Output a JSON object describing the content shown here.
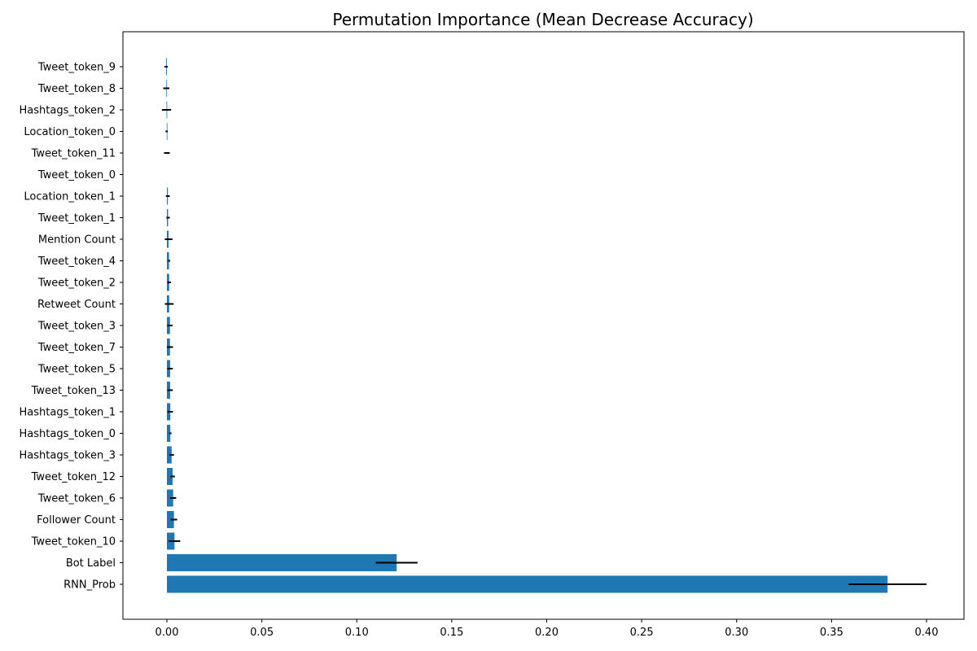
{
  "chart_data": {
    "type": "bar",
    "orientation": "horizontal",
    "title": "Permutation Importance (Mean Decrease Accuracy)",
    "xlabel": "",
    "ylabel": "",
    "xlim": [
      -0.023,
      0.4175
    ],
    "xticks": [
      0.0,
      0.05,
      0.1,
      0.15,
      0.2,
      0.25,
      0.3,
      0.35,
      0.4
    ],
    "xtick_labels": [
      "0.00",
      "0.05",
      "0.10",
      "0.15",
      "0.20",
      "0.25",
      "0.30",
      "0.35",
      "0.40"
    ],
    "grid": false,
    "bar_color": "#1f77b4",
    "error_color": "#000000",
    "categories": [
      "RNN_Prob",
      "Bot Label",
      "Tweet_token_10",
      "Follower Count",
      "Tweet_token_6",
      "Tweet_token_12",
      "Hashtags_token_3",
      "Hashtags_token_0",
      "Hashtags_token_1",
      "Tweet_token_13",
      "Tweet_token_5",
      "Tweet_token_7",
      "Tweet_token_3",
      "Retweet Count",
      "Tweet_token_2",
      "Tweet_token_4",
      "Mention Count",
      "Tweet_token_1",
      "Location_token_1",
      "Tweet_token_0",
      "Tweet_token_11",
      "Location_token_0",
      "Hashtags_token_2",
      "Tweet_token_8",
      "Tweet_token_9"
    ],
    "values": [
      0.3795,
      0.121,
      0.004,
      0.0037,
      0.0033,
      0.003,
      0.0025,
      0.0018,
      0.0018,
      0.0017,
      0.0017,
      0.0016,
      0.0016,
      0.0012,
      0.0012,
      0.0011,
      0.0009,
      0.0006,
      0.0005,
      0.0,
      0.0,
      -0.0001,
      -0.0002,
      -0.0003,
      -0.0004
    ],
    "errors": [
      0.0205,
      0.011,
      0.003,
      0.0017,
      0.0016,
      0.0012,
      0.0012,
      0.0006,
      0.0014,
      0.0014,
      0.0014,
      0.0016,
      0.0014,
      0.0023,
      0.0009,
      0.0006,
      0.002,
      0.0009,
      0.001,
      0.0,
      0.0015,
      0.0006,
      0.0024,
      0.0016,
      0.0009
    ]
  }
}
